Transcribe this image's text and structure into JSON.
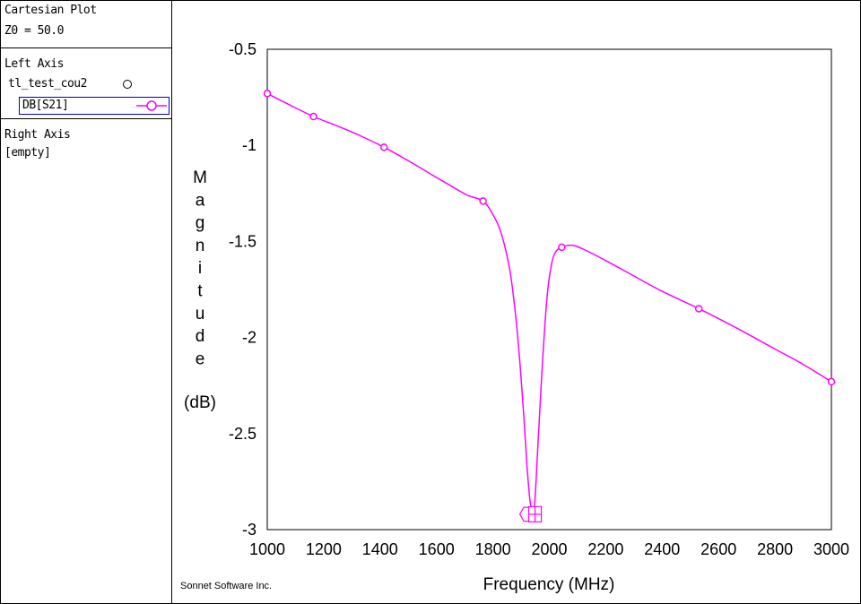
{
  "sidebar": {
    "plot_title": "Cartesian Plot",
    "z0": "Z0 = 50.0",
    "left_axis": {
      "heading": "Left Axis",
      "file": "tl_test_cou2",
      "trace": "DB[S21]"
    },
    "right_axis": {
      "heading": "Right Axis",
      "value": "[empty]"
    }
  },
  "credit": "Sonnet Software Inc.",
  "colors": {
    "trace": "#ff00ff",
    "selection": "#0000cc",
    "axis": "#000000"
  },
  "chart_data": {
    "type": "line",
    "xlabel": "Frequency (MHz)",
    "ylabel_letters": [
      "M",
      "a",
      "g",
      "n",
      "i",
      "t",
      "u",
      "d",
      "e"
    ],
    "ylabel_unit": "(dB)",
    "xlim": [
      1000,
      3000
    ],
    "ylim": [
      -3,
      -0.5
    ],
    "xticks": [
      1000,
      1200,
      1400,
      1600,
      1800,
      2000,
      2200,
      2400,
      2600,
      2800,
      3000
    ],
    "yticks": [
      -0.5,
      -1,
      -1.5,
      -2,
      -2.5,
      -3
    ],
    "ytick_labels": [
      "-0.5",
      "-1",
      "-1.5",
      "-2",
      "-2.5",
      "-3"
    ],
    "grid": false,
    "series": [
      {
        "color": "#ff00ff",
        "x": [
          1000,
          1080,
          1164,
          1250,
          1330,
          1414,
          1500,
          1580,
          1650,
          1710,
          1765,
          1800,
          1830,
          1860,
          1880,
          1895,
          1910,
          1920,
          1930,
          1938,
          1943,
          1950,
          1960,
          1975,
          1990,
          2005,
          2020,
          2044,
          2080,
          2120,
          2200,
          2300,
          2400,
          2530,
          2650,
          2800,
          2900,
          3000
        ],
        "y": [
          -0.73,
          -0.79,
          -0.85,
          -0.9,
          -0.95,
          -1.01,
          -1.08,
          -1.15,
          -1.21,
          -1.26,
          -1.29,
          -1.36,
          -1.46,
          -1.65,
          -1.88,
          -2.12,
          -2.42,
          -2.65,
          -2.83,
          -2.9,
          -2.92,
          -2.82,
          -2.55,
          -2.15,
          -1.82,
          -1.64,
          -1.56,
          -1.53,
          -1.52,
          -1.54,
          -1.6,
          -1.68,
          -1.76,
          -1.85,
          -1.94,
          -2.06,
          -2.14,
          -2.23
        ]
      }
    ],
    "markers_x": [
      1000,
      1164,
      1414,
      1765,
      2044,
      2530,
      3000
    ],
    "markers_y": [
      -0.73,
      -0.85,
      -1.01,
      -1.29,
      -1.53,
      -1.85,
      -2.23
    ],
    "min_marker": {
      "x": 1943,
      "y": -2.92
    }
  }
}
